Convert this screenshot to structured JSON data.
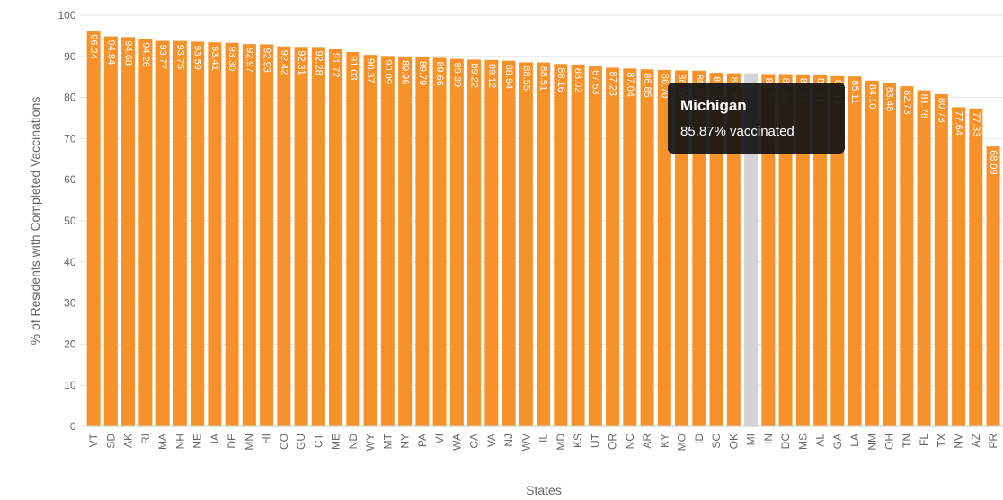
{
  "chart_data": {
    "type": "bar",
    "x_label": "States",
    "y_label": "% of Residents with Completed Vaccinations",
    "categories": [
      "VT",
      "SD",
      "AK",
      "RI",
      "MA",
      "NH",
      "NE",
      "IA",
      "DE",
      "MN",
      "HI",
      "CO",
      "GU",
      "CT",
      "ME",
      "ND",
      "WY",
      "MT",
      "NY",
      "PA",
      "VI",
      "WA",
      "CA",
      "VA",
      "NJ",
      "WV",
      "IL",
      "MD",
      "KS",
      "UT",
      "OR",
      "NC",
      "AR",
      "KY",
      "MO",
      "ID",
      "SC",
      "OK",
      "MI",
      "IN",
      "DC",
      "MS",
      "AL",
      "GA",
      "LA",
      "NM",
      "OH",
      "TN",
      "FL",
      "TX",
      "NV",
      "AZ",
      "PR"
    ],
    "values": [
      96.24,
      94.84,
      94.68,
      94.26,
      93.77,
      93.75,
      93.59,
      93.41,
      93.3,
      92.97,
      92.93,
      92.42,
      92.31,
      92.28,
      91.72,
      91.03,
      90.37,
      90.09,
      89.96,
      89.79,
      89.66,
      89.39,
      89.22,
      89.12,
      88.94,
      88.55,
      88.51,
      88.16,
      88.02,
      87.53,
      87.23,
      87.04,
      86.85,
      86.7,
      86.6,
      86.5,
      86.0,
      85.9,
      85.87,
      85.7,
      85.68,
      85.65,
      85.61,
      85.19,
      85.11,
      84.1,
      83.48,
      82.73,
      81.76,
      80.78,
      77.64,
      77.33,
      68.09
    ],
    "value_labels": [
      "96.24",
      "94.84",
      "94.68",
      "94.26",
      "93.77",
      "93.75",
      "93.59",
      "93.41",
      "93.30",
      "92.97",
      "92.93",
      "92.42",
      "92.31",
      "92.28",
      "91.72",
      "91.03",
      "90.37",
      "90.09",
      "89.96",
      "89.79",
      "89.66",
      "89.39",
      "89.22",
      "89.12",
      "88.94",
      "88.55",
      "88.51",
      "88.16",
      "88.02",
      "87.53",
      "87.23",
      "87.04",
      "86.85",
      "86.70",
      "86.60",
      "86.50",
      "86.00",
      "85.90",
      "85.87",
      "85.70",
      "85.68",
      "85.65",
      "85.61",
      "85.19",
      "85.11",
      "84.10",
      "83.48",
      "82.73",
      "81.76",
      "80.78",
      "77.64",
      "77.33",
      "68.09"
    ],
    "color": "#f7922a",
    "highlight_color": "#d4d4d4",
    "highlight_index": 38,
    "ylim": [
      0,
      100
    ],
    "yticks": [
      0,
      10,
      20,
      30,
      40,
      50,
      60,
      70,
      80,
      90,
      100
    ],
    "grid": true,
    "tooltip": {
      "title": "Michigan",
      "text": "85.87% vaccinated"
    }
  }
}
